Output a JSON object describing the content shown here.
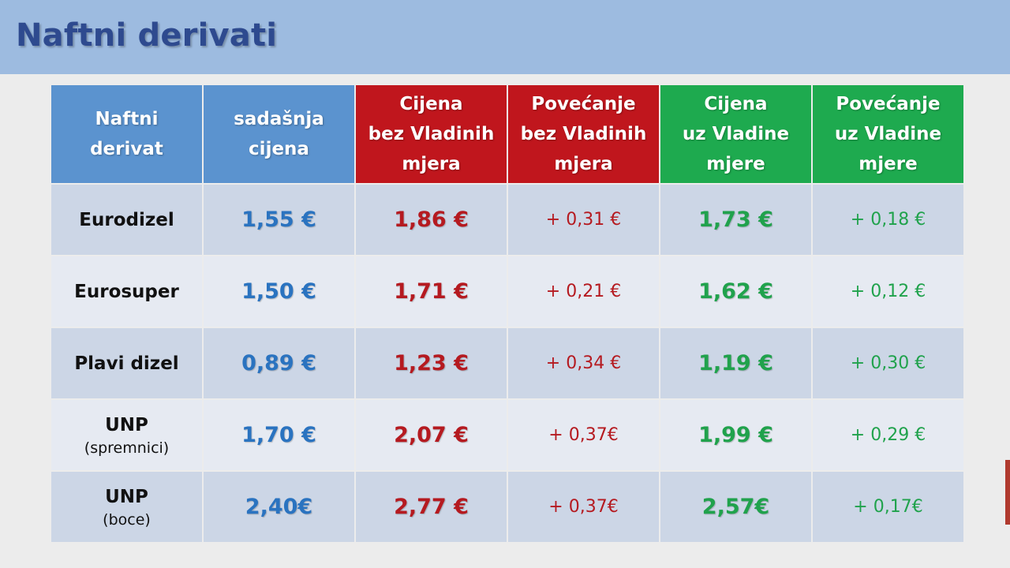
{
  "title": "Naftni derivati",
  "colors": {
    "header_blue": "#5b93cf",
    "header_red": "#c0161d",
    "header_green": "#1eaa4f",
    "value_blue": "#2a73c0",
    "value_red": "#b51a20",
    "value_green": "#20a24c"
  },
  "table": {
    "headers": [
      {
        "lines": [
          "Naftni",
          "derivat"
        ]
      },
      {
        "lines": [
          "sadašnja",
          "cijena"
        ]
      },
      {
        "lines": [
          "Cijena",
          "bez Vladinih",
          "mjera"
        ]
      },
      {
        "lines": [
          "Povećanje",
          "bez Vladinih",
          "mjera"
        ]
      },
      {
        "lines": [
          "Cijena",
          "uz Vladine",
          "mjere"
        ]
      },
      {
        "lines": [
          "Povećanje",
          "uz Vladine",
          "mjere"
        ]
      }
    ],
    "rows": [
      {
        "name": "Eurodizel",
        "sub": "",
        "current": "1,55 €",
        "price_without": "1,86 €",
        "increase_without": "+ 0,31 €",
        "price_with": "1,73 €",
        "increase_with": "+ 0,18 €"
      },
      {
        "name": "Eurosuper",
        "sub": "",
        "current": "1,50 €",
        "price_without": "1,71 €",
        "increase_without": "+ 0,21 €",
        "price_with": "1,62 €",
        "increase_with": "+ 0,12 €"
      },
      {
        "name": "Plavi dizel",
        "sub": "",
        "current": "0,89 €",
        "price_without": "1,23 €",
        "increase_without": "+ 0,34 €",
        "price_with": "1,19 €",
        "increase_with": "+ 0,30 €"
      },
      {
        "name": "UNP",
        "sub": "(spremnici)",
        "current": "1,70 €",
        "price_without": "2,07 €",
        "increase_without": "+ 0,37€",
        "price_with": "1,99 €",
        "increase_with": "+ 0,29 €"
      },
      {
        "name": "UNP",
        "sub": "(boce)",
        "current": "2,40€",
        "price_without": "2,77 €",
        "increase_without": "+ 0,37€",
        "price_with": "2,57€",
        "increase_with": "+ 0,17€"
      }
    ]
  }
}
